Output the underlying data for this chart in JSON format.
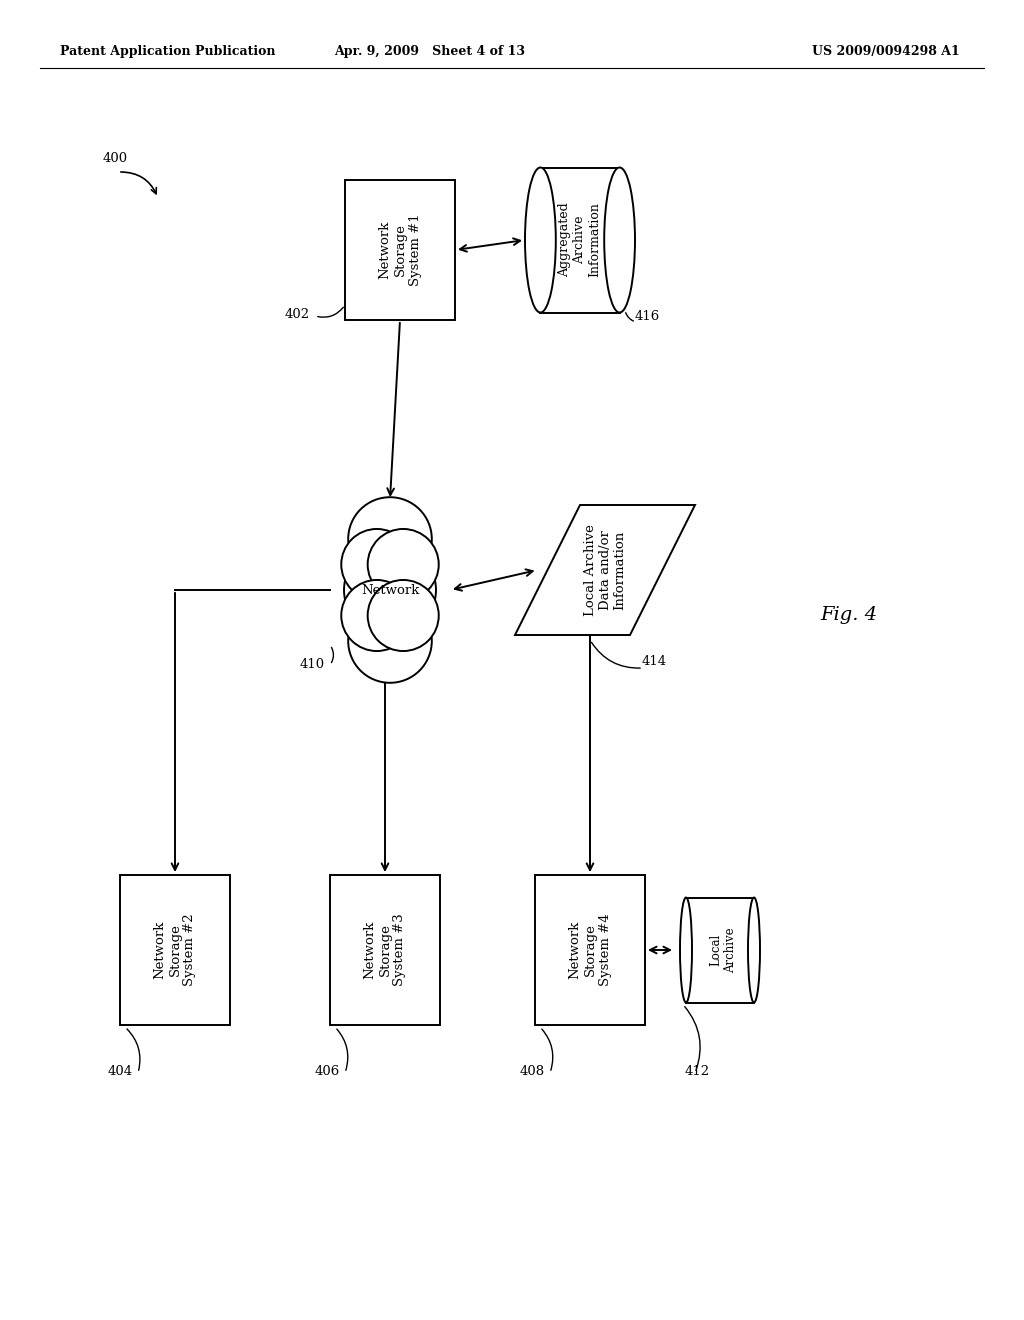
{
  "bg_color": "#ffffff",
  "header_left": "Patent Application Publication",
  "header_mid": "Apr. 9, 2009   Sheet 4 of 13",
  "header_right": "US 2009/0094298 A1",
  "fig_label": "Fig. 4",
  "lw": 1.4
}
